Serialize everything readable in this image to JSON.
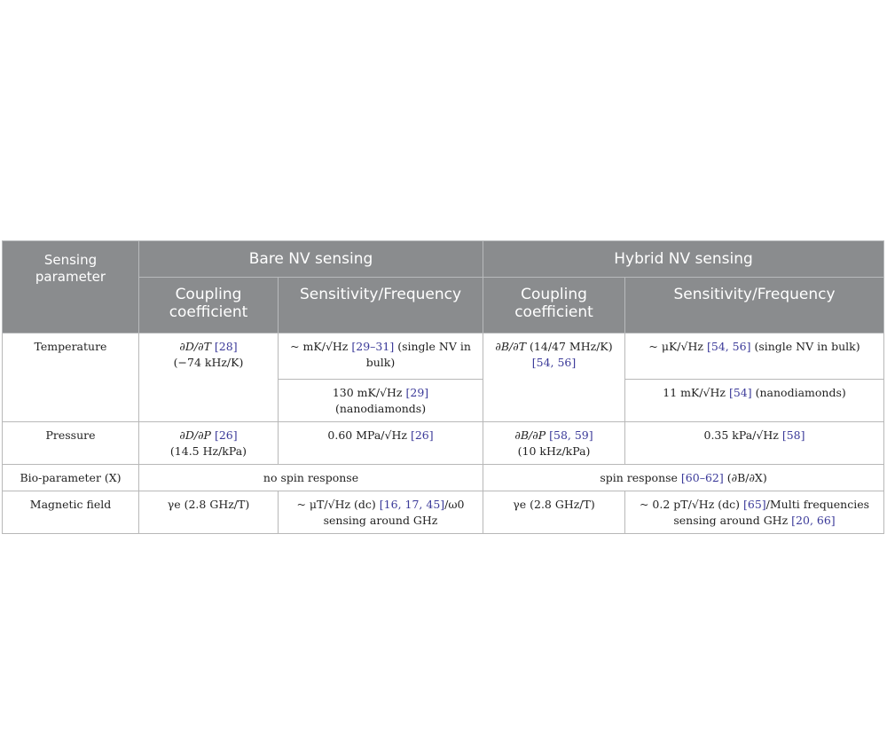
{
  "header": {
    "param": "Sensing parameter",
    "bare": "Bare NV sensing",
    "hybrid": "Hybrid NV sensing",
    "coupling_bare": "Coupling coefficient",
    "sens_bare": "Sensitivity/Frequency",
    "coupling_hybrid": "Coupling coefficient",
    "sens_hybrid": "Sensitivity/Frequency"
  },
  "rows": {
    "temperature": {
      "param": "Temperature",
      "bare_coupling": {
        "expr": "∂D/∂T",
        "ref": "[28]",
        "value": "(−74 kHz/K)"
      },
      "bare_sens_1": {
        "pre": "~ mK/√Hz",
        "ref": "[29–31]",
        "post": "(single NV in bulk)"
      },
      "bare_sens_2": {
        "pre": "130 mK/√Hz",
        "ref": "[29]",
        "post": "(nanodiamonds)"
      },
      "hybrid_coupling": {
        "expr": "∂B/∂T",
        "value": "(14/47 MHz/K)",
        "ref": "[54, 56]"
      },
      "hybrid_sens_1": {
        "pre": "~ μK/√Hz",
        "ref": "[54, 56]",
        "post": "(single NV in bulk)"
      },
      "hybrid_sens_2": {
        "pre": "11 mK/√Hz",
        "ref": "[54]",
        "post": "(nanodiamonds)"
      }
    },
    "pressure": {
      "param": "Pressure",
      "bare_coupling": {
        "expr": "∂D/∂P",
        "ref": "[26]",
        "value": "(14.5 Hz/kPa)"
      },
      "bare_sens": {
        "pre": "0.60 MPa/√Hz",
        "ref": "[26]"
      },
      "hybrid_coupling": {
        "expr": "∂B/∂P",
        "ref": "[58, 59]",
        "value": "(10 kHz/kPa)"
      },
      "hybrid_sens": {
        "pre": "0.35 kPa/√Hz",
        "ref": "[58]"
      }
    },
    "bio": {
      "param": "Bio-parameter (X)",
      "bare": "no spin response",
      "hybrid_pre": "spin response",
      "hybrid_ref": "[60–62]",
      "hybrid_post": "(∂B/∂X)"
    },
    "magnetic": {
      "param": "Magnetic field",
      "bare_coupling": "γe (2.8 GHz/T)",
      "bare_sens": {
        "pre": "~ μT/√Hz (dc)",
        "ref": "[16, 17, 45]",
        "post": "/ω0 sensing around GHz"
      },
      "hybrid_coupling": "γe (2.8 GHz/T)",
      "hybrid_sens": {
        "pre": "~ 0.2 pT/√Hz (dc)",
        "ref": "[65]",
        "mid": "/Multi frequencies sensing around GHz",
        "ref2": "[20, 66]"
      }
    }
  }
}
